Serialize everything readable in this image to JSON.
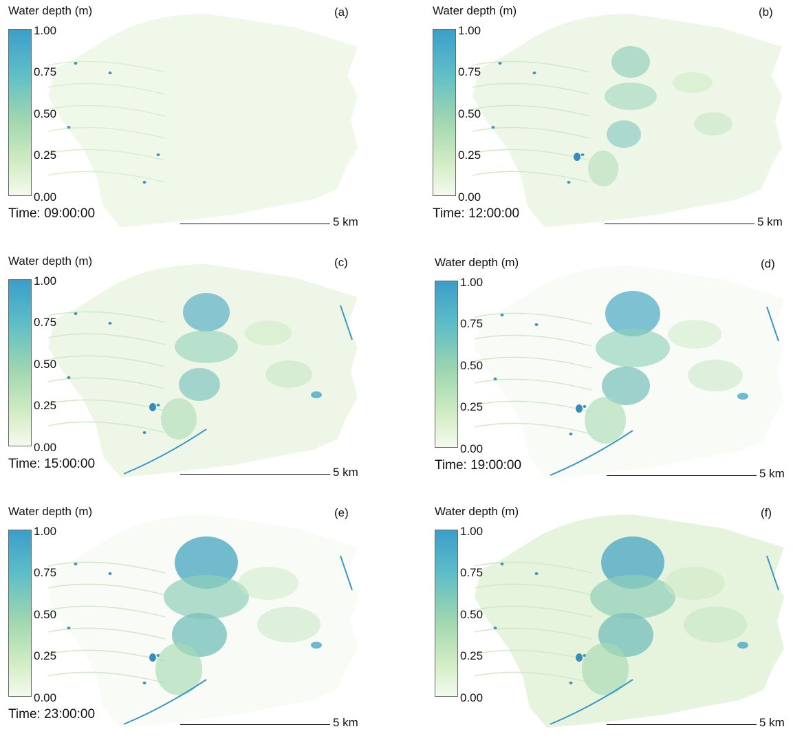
{
  "legend": {
    "title": "Water depth (m)",
    "ticks": [
      "1.00",
      "0.75",
      "0.50",
      "0.25",
      "0.00"
    ],
    "colors": [
      "#3b9ec9",
      "#5cbcc8",
      "#a0d7b0",
      "#d2ecc4",
      "#f4faee"
    ]
  },
  "scalebar": {
    "label": "5 km"
  },
  "panels": [
    {
      "label": "(a)",
      "time": "Time: 09:00:00",
      "flood_level": 0
    },
    {
      "label": "(b)",
      "time": "Time: 12:00:00",
      "flood_level": 1
    },
    {
      "label": "(c)",
      "time": "Time: 15:00:00",
      "flood_level": 2
    },
    {
      "label": "(d)",
      "time": "Time: 19:00:00",
      "flood_level": 3
    },
    {
      "label": "(e)",
      "time": "Time: 23:00:00",
      "flood_level": 4
    },
    {
      "label": "(f)",
      "time": "",
      "flood_level": 5
    }
  ]
}
